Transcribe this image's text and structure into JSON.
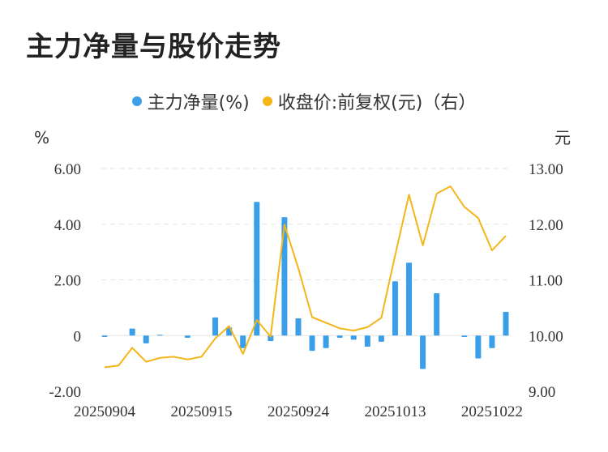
{
  "title": "主力净量与股价走势",
  "legend": {
    "series1": "主力净量(%)",
    "series2": "收盘价:前复权(元)（右）"
  },
  "colors": {
    "bar": "#3a9fe8",
    "line": "#f4b516",
    "grid": "#e2e2e2"
  },
  "chart_data": {
    "type": "bar+line",
    "title": "主力净量与股价走势",
    "y_left_unit": "%",
    "y_right_unit": "元",
    "y_left_ticks": [
      "6.00",
      "4.00",
      "2.00",
      "0",
      "-2.00"
    ],
    "y_right_ticks": [
      "13.00",
      "12.00",
      "11.00",
      "10.00",
      "9.00"
    ],
    "y_left_range": [
      -2,
      6
    ],
    "y_right_range": [
      9,
      13
    ],
    "x_tick_labels": [
      "20250904",
      "20250915",
      "20250924",
      "20251013",
      "20251022"
    ],
    "x_tick_indices": [
      0,
      7,
      14,
      21,
      28
    ],
    "grid": true,
    "series": [
      {
        "name": "主力净量(%)",
        "kind": "bar",
        "values": [
          -0.05,
          0.0,
          0.25,
          -0.28,
          0.03,
          0.0,
          -0.08,
          0.0,
          0.65,
          0.3,
          -0.45,
          4.8,
          -0.2,
          4.25,
          0.62,
          -0.55,
          -0.45,
          -0.08,
          -0.15,
          -0.4,
          -0.22,
          1.95,
          2.62,
          -1.2,
          1.52,
          0.0,
          -0.05,
          -0.82,
          -0.45,
          0.85
        ]
      },
      {
        "name": "收盘价:前复权(元)（右）",
        "kind": "line",
        "values": [
          9.43,
          9.46,
          9.78,
          9.53,
          9.6,
          9.62,
          9.57,
          9.62,
          9.95,
          10.17,
          9.67,
          10.28,
          9.98,
          11.99,
          11.21,
          10.33,
          10.23,
          10.13,
          10.09,
          10.15,
          10.32,
          11.44,
          12.53,
          11.62,
          12.55,
          12.68,
          12.31,
          12.11,
          11.53,
          11.79
        ]
      }
    ]
  }
}
